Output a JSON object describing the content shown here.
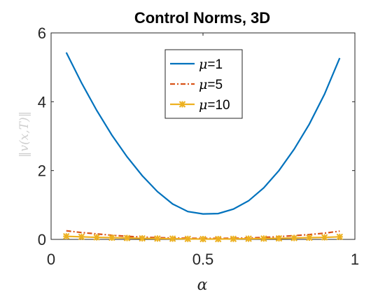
{
  "chart_data": {
    "type": "line",
    "title": "Control Norms, 3D",
    "xlabel": "α",
    "ylabel": "‖v(x,T)‖",
    "xlim": [
      0,
      1
    ],
    "ylim": [
      0,
      6
    ],
    "xticks": [
      0,
      0.5,
      1
    ],
    "xtick_labels": [
      "0",
      "0.5",
      "1"
    ],
    "yticks": [
      0,
      2,
      4,
      6
    ],
    "ytick_labels": [
      "0",
      "2",
      "4",
      "6"
    ],
    "grid": false,
    "legend_position": "top-center",
    "x": [
      0.05,
      0.1,
      0.15,
      0.2,
      0.25,
      0.3,
      0.35,
      0.4,
      0.45,
      0.5,
      0.55,
      0.6,
      0.65,
      0.7,
      0.75,
      0.8,
      0.85,
      0.9,
      0.95
    ],
    "series": [
      {
        "name": "μ=1",
        "legend_symbol": "μ",
        "legend_value": "=1",
        "color": "#0072BD",
        "style": "solid",
        "markers": false,
        "values": [
          5.43,
          4.55,
          3.75,
          3.03,
          2.4,
          1.85,
          1.39,
          1.03,
          0.81,
          0.74,
          0.75,
          0.88,
          1.12,
          1.5,
          2.0,
          2.62,
          3.35,
          4.22,
          5.27
        ]
      },
      {
        "name": "μ=5",
        "legend_symbol": "μ",
        "legend_value": "=5",
        "color": "#D95319",
        "style": "dashdot",
        "markers": false,
        "values": [
          0.25,
          0.2,
          0.16,
          0.12,
          0.09,
          0.07,
          0.05,
          0.04,
          0.035,
          0.03,
          0.03,
          0.035,
          0.04,
          0.06,
          0.08,
          0.11,
          0.14,
          0.18,
          0.24
        ]
      },
      {
        "name": "μ=10",
        "legend_symbol": "μ",
        "legend_value": "=10",
        "color": "#EDB120",
        "style": "solid",
        "markers": true,
        "values": [
          0.09,
          0.075,
          0.06,
          0.05,
          0.04,
          0.03,
          0.025,
          0.02,
          0.015,
          0.01,
          0.01,
          0.015,
          0.02,
          0.025,
          0.03,
          0.04,
          0.05,
          0.06,
          0.075
        ]
      }
    ]
  }
}
